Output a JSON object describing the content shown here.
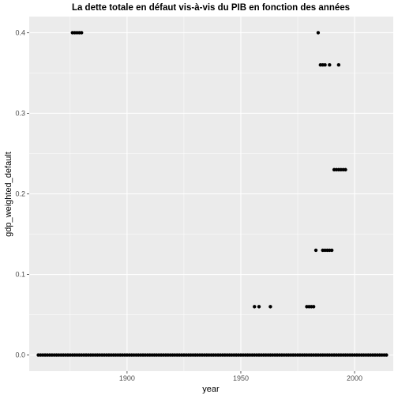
{
  "chart_data": {
    "type": "scatter",
    "title": "La dette totale en défaut vis-à-vis du PIB en fonction des années",
    "xlabel": "year",
    "ylabel": "gdp_weighted_default",
    "xlim": [
      1857,
      2017
    ],
    "ylim": [
      -0.02,
      0.42
    ],
    "x_ticks": [
      1900,
      1950,
      2000
    ],
    "x_tick_labels": [
      "1900",
      "1950",
      "2000"
    ],
    "y_ticks": [
      0.0,
      0.1,
      0.2,
      0.3,
      0.4
    ],
    "y_tick_labels": [
      "0.0",
      "0.1",
      "0.2",
      "0.3",
      "0.4"
    ],
    "grid": true,
    "panel_color": "#ebebeb",
    "point_color": "#000000",
    "baseline_range": {
      "x_start": 1861,
      "x_end": 2014,
      "y": 0.0
    },
    "points": [
      {
        "x": 1876,
        "y": 0.4
      },
      {
        "x": 1877,
        "y": 0.4
      },
      {
        "x": 1878,
        "y": 0.4
      },
      {
        "x": 1879,
        "y": 0.4
      },
      {
        "x": 1880,
        "y": 0.4
      },
      {
        "x": 1984,
        "y": 0.4
      },
      {
        "x": 1985,
        "y": 0.36
      },
      {
        "x": 1986,
        "y": 0.36
      },
      {
        "x": 1987,
        "y": 0.36
      },
      {
        "x": 1989,
        "y": 0.36
      },
      {
        "x": 1993,
        "y": 0.36
      },
      {
        "x": 1991,
        "y": 0.23
      },
      {
        "x": 1992,
        "y": 0.23
      },
      {
        "x": 1993,
        "y": 0.23
      },
      {
        "x": 1994,
        "y": 0.23
      },
      {
        "x": 1995,
        "y": 0.23
      },
      {
        "x": 1996,
        "y": 0.23
      },
      {
        "x": 1983,
        "y": 0.13
      },
      {
        "x": 1986,
        "y": 0.13
      },
      {
        "x": 1987,
        "y": 0.13
      },
      {
        "x": 1988,
        "y": 0.13
      },
      {
        "x": 1989,
        "y": 0.13
      },
      {
        "x": 1990,
        "y": 0.13
      },
      {
        "x": 1956,
        "y": 0.06
      },
      {
        "x": 1958,
        "y": 0.06
      },
      {
        "x": 1963,
        "y": 0.06
      },
      {
        "x": 1979,
        "y": 0.06
      },
      {
        "x": 1980,
        "y": 0.06
      },
      {
        "x": 1981,
        "y": 0.06
      },
      {
        "x": 1982,
        "y": 0.06
      }
    ]
  }
}
